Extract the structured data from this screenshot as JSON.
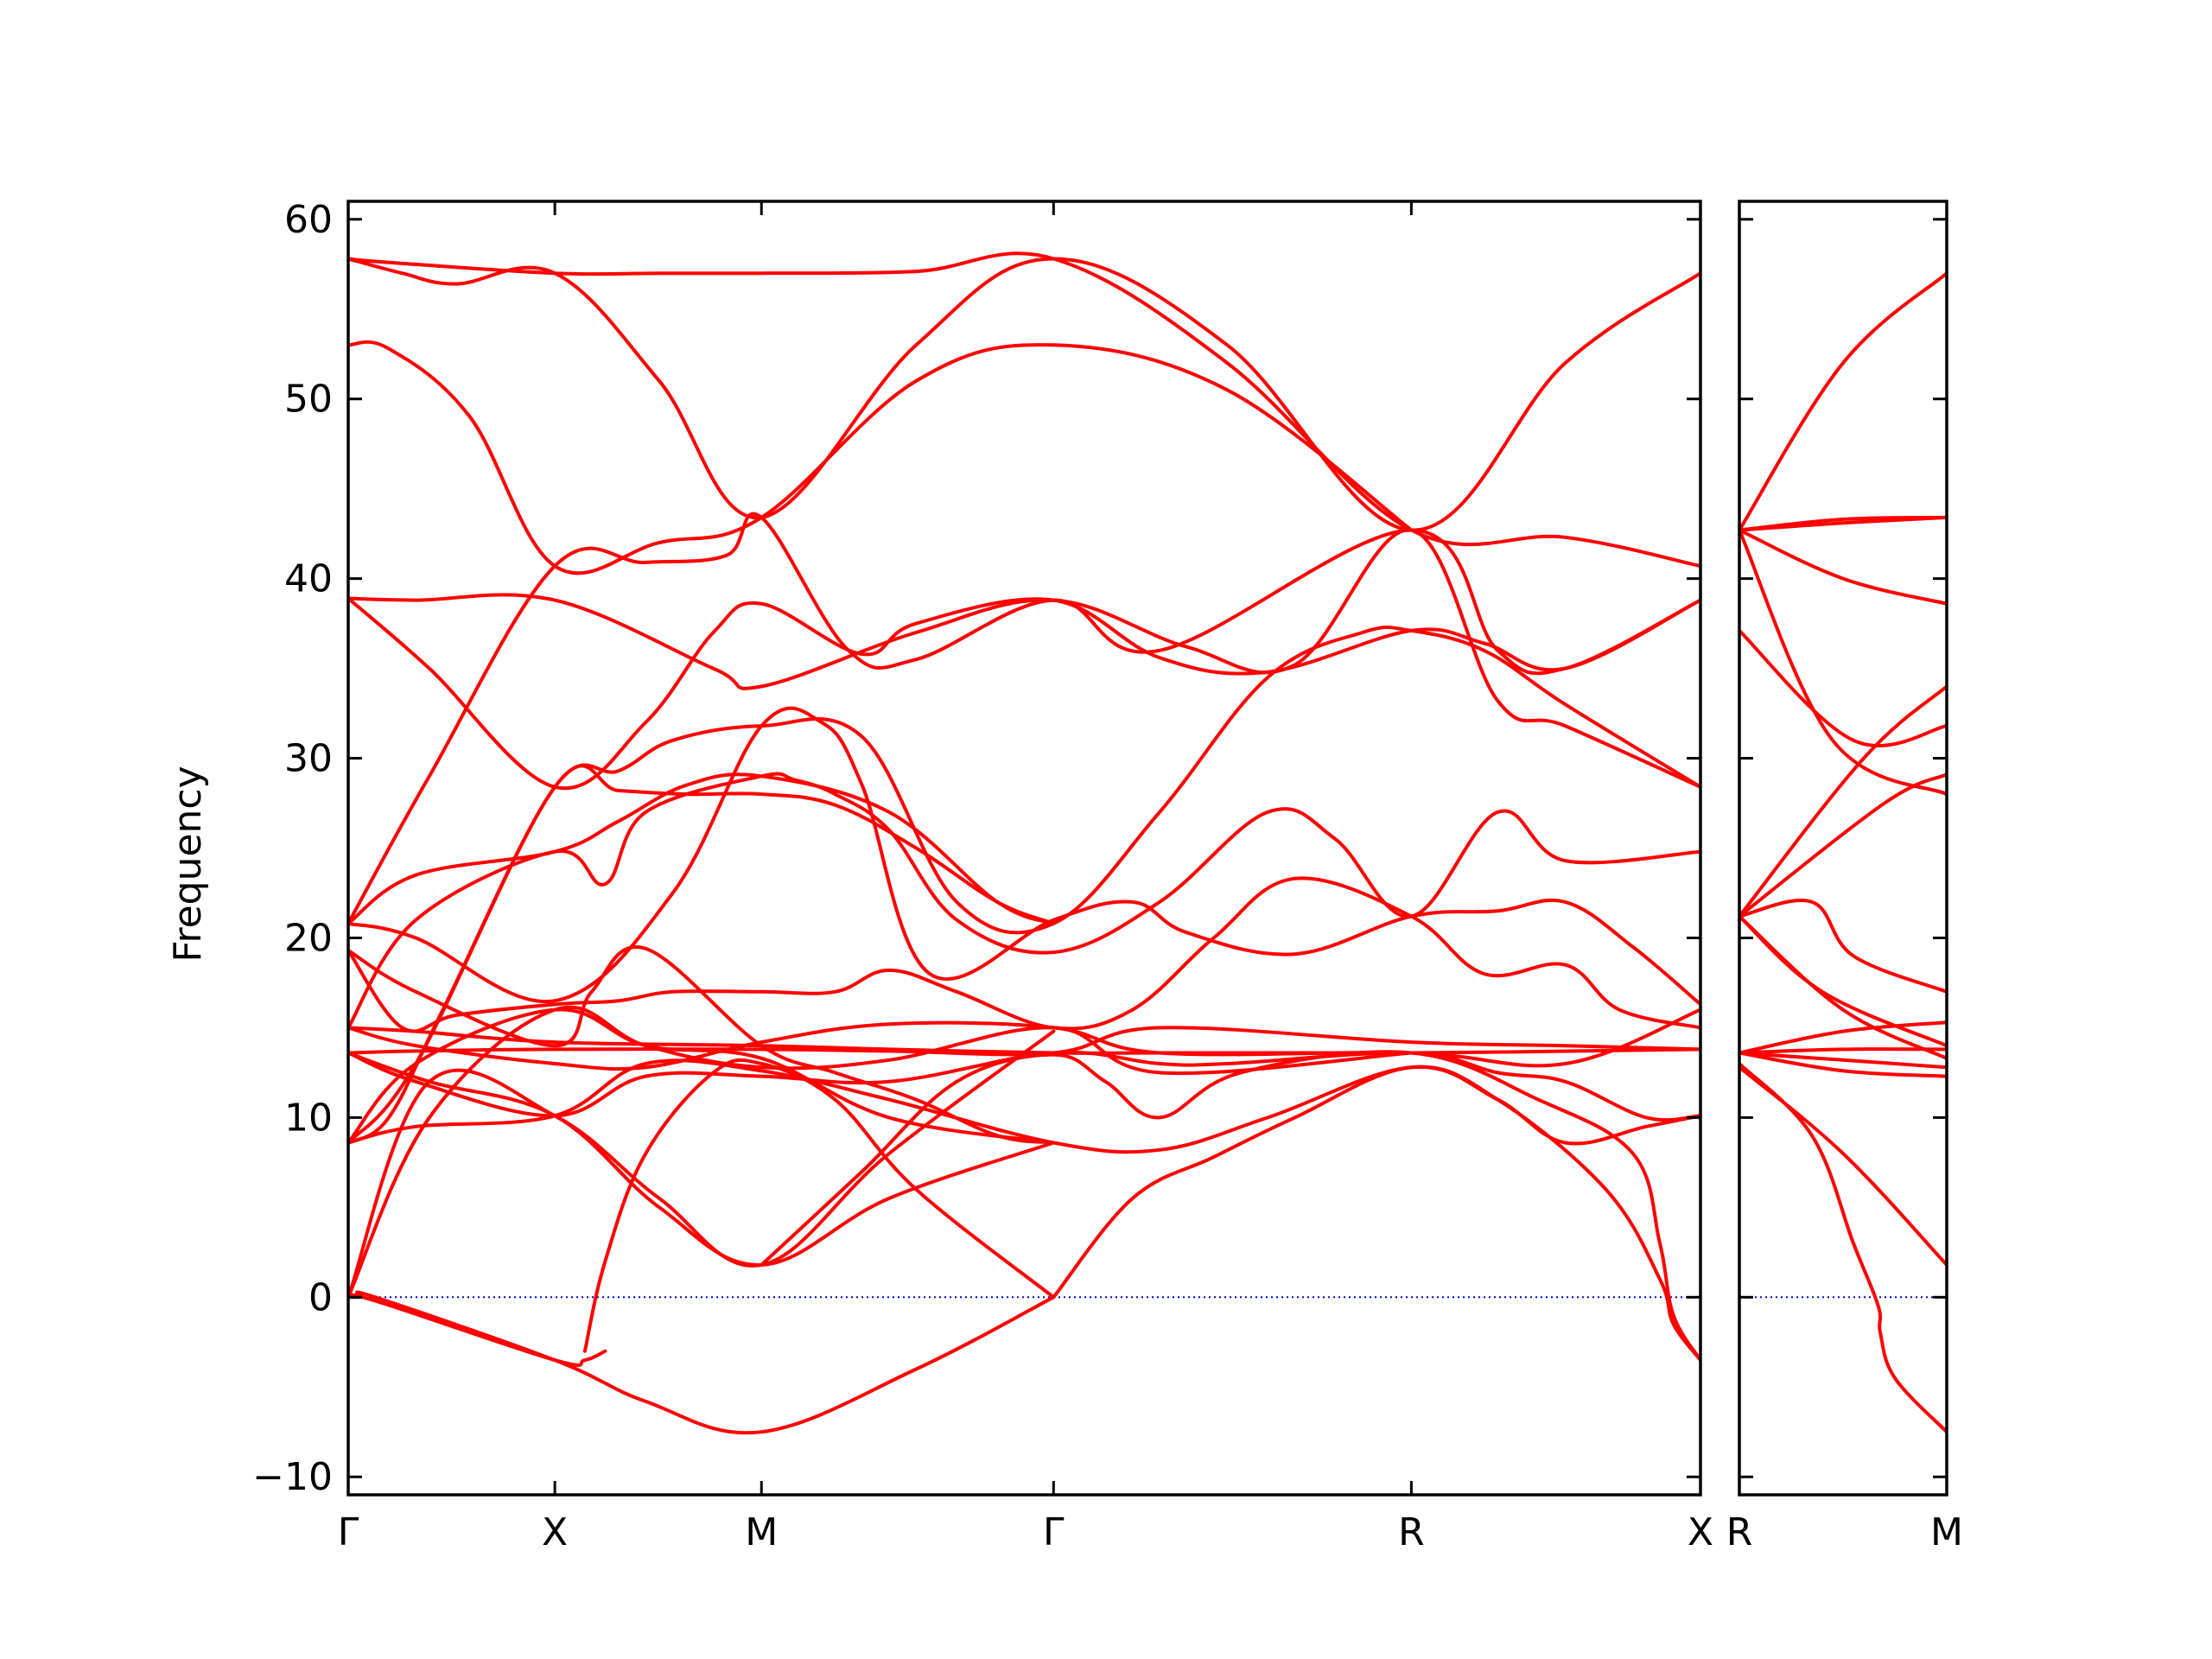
{
  "chart_data": {
    "type": "line",
    "title": "",
    "xlabel": "",
    "ylabel": "Frequency",
    "ylim": [
      -11,
      61
    ],
    "yticks": [
      -10,
      0,
      10,
      20,
      30,
      40,
      50,
      60
    ],
    "ytick_labels": [
      "−10",
      "0",
      "10",
      "20",
      "30",
      "40",
      "50",
      "60"
    ],
    "grid": false,
    "legend": "none",
    "colors": {
      "bands": "#ff0000",
      "zero_line": "#0000cc"
    },
    "panels": [
      {
        "name": "Γ-X-M-Γ-R-X",
        "xlim": [
          0,
          1
        ],
        "kpoints": [
          {
            "label": "Γ",
            "x": 0.0
          },
          {
            "label": "X",
            "x": 0.1528
          },
          {
            "label": "M",
            "x": 0.3056
          },
          {
            "label": "Γ",
            "x": 0.5216
          },
          {
            "label": "R",
            "x": 0.7862
          },
          {
            "label": "X",
            "x": 1.0
          }
        ],
        "bands": [
          {
            "x": [
              0,
              0.03,
              0.1528,
              0.23,
              0.3056,
              0.42,
              0.5216,
              0.65,
              0.7862,
              0.9,
              1.0
            ],
            "y": [
              57.8,
              57.6,
              57.0,
              57.0,
              57.0,
              57.1,
              57.8,
              52,
              42.7,
              42.3,
              40.7
            ]
          },
          {
            "x": [
              0,
              0.04,
              0.08,
              0.1528,
              0.23,
              0.3056,
              0.42,
              0.5216,
              0.65,
              0.7862,
              0.9,
              1.0
            ],
            "y": [
              57.8,
              57.0,
              56.4,
              57.0,
              51,
              43.4,
              53,
              57.8,
              53,
              42.7,
              52,
              57.0
            ]
          },
          {
            "x": [
              0,
              0.03,
              0.09,
              0.1528,
              0.23,
              0.3056,
              0.42,
              0.5216,
              0.65,
              0.7862
            ],
            "y": [
              53.0,
              52.8,
              49,
              40.7,
              42,
              43.4,
              51,
              53.0,
              50.5,
              42.7
            ]
          },
          {
            "x": [
              0,
              0.06,
              0.1528,
              0.22,
              0.28,
              0.3056,
              0.37,
              0.42,
              0.5216,
              0.6,
              0.7862,
              0.85,
              0.9,
              1.0
            ],
            "y": [
              20.8,
              29,
              40.7,
              40.9,
              41.3,
              43.4,
              36,
              35.5,
              38.8,
              36,
              42.7,
              36,
              35,
              38.8
            ]
          },
          {
            "x": [
              0,
              0.05,
              0.1528,
              0.27,
              0.3056,
              0.42,
              0.5216,
              0.62,
              0.7,
              0.7862,
              0.85,
              0.9,
              1.0
            ],
            "y": [
              38.9,
              38.8,
              38.8,
              35.0,
              34.0,
              37,
              38.8,
              36.2,
              35.2,
              42.7,
              33.2,
              31.8,
              28.4
            ]
          },
          {
            "x": [
              0,
              0.06,
              0.1528,
              0.22,
              0.27,
              0.3056,
              0.38,
              0.42,
              0.5216,
              0.6,
              0.68,
              0.7862,
              0.84,
              0.9,
              1.0
            ],
            "y": [
              38.9,
              35,
              28.4,
              32,
              37,
              38.6,
              35.8,
              37.5,
              38.8,
              35.6,
              34.8,
              37.1,
              36.4,
              35.0,
              38.8
            ]
          },
          {
            "x": [
              0,
              0.03,
              0.07,
              0.1528,
              0.2,
              0.24,
              0.3056,
              0.38,
              0.45,
              0.5216,
              0.6,
              0.68,
              0.75,
              0.7862,
              0.84,
              0.9,
              1.0
            ],
            "y": [
              8.6,
              10,
              16,
              28.4,
              29.3,
              31,
              31.8,
              31.2,
              22,
              20.8,
              27,
              34.5,
              37,
              37.1,
              36,
              33,
              28.4
            ]
          },
          {
            "x": [
              0,
              0.05,
              0.1528,
              0.2,
              0.25,
              0.3056,
              0.36,
              0.42,
              0.48,
              0.5216
            ],
            "y": [
              8.6,
              13,
              28.4,
              28.2,
              28.0,
              28.0,
              27.4,
              25,
              22,
              20.8
            ]
          },
          {
            "x": [
              0,
              0.05,
              0.1528,
              0.2,
              0.25,
              0.3056,
              0.4,
              0.48,
              0.5216
            ],
            "y": [
              20.8,
              23.5,
              24.8,
              26.5,
              28.5,
              29.0,
              27,
              22,
              20.8
            ]
          },
          {
            "x": [
              0,
              0.05,
              0.1528,
              0.19,
              0.22,
              0.3056,
              0.33,
              0.36,
              0.4,
              0.45,
              0.5216,
              0.6,
              0.68,
              0.73,
              0.7862,
              0.85,
              0.9,
              1.0
            ],
            "y": [
              15,
              21,
              24.8,
              23.0,
              27,
              29.0,
              28.8,
              28,
              26,
              21,
              19.2,
              22,
              27.0,
              25.5,
              21.2,
              27.0,
              24.3,
              24.8
            ]
          },
          {
            "x": [
              0,
              0.05,
              0.1528,
              0.24,
              0.3056,
              0.35,
              0.38,
              0.43,
              0.5216,
              0.58,
              0.62,
              0.7,
              0.7862,
              0.85,
              0.9,
              0.95,
              1.0
            ],
            "y": [
              20.8,
              20,
              16.5,
              22.5,
              31.8,
              32,
              28.5,
              18,
              21.0,
              22,
              20.3,
              19.1,
              21.2,
              21.5,
              22.0,
              19.5,
              16.3
            ]
          },
          {
            "x": [
              0,
              0.04,
              0.08,
              0.1528,
              0.2,
              0.24,
              0.3056,
              0.36,
              0.4,
              0.45,
              0.5216,
              0.58,
              0.64,
              0.7,
              0.7862,
              0.84,
              0.9,
              0.94,
              1.0
            ],
            "y": [
              19.3,
              15,
              15.7,
              16.3,
              16.5,
              17,
              17.0,
              17,
              18.2,
              17,
              15.0,
              16,
              20,
              23.3,
              21.2,
              18,
              18.5,
              16,
              15.0
            ]
          },
          {
            "x": [
              0,
              0.05,
              0.1528,
              0.18,
              0.22,
              0.3056,
              0.36,
              0.42,
              0.48,
              0.5216
            ],
            "y": [
              19.3,
              17,
              14,
              17,
              19.4,
              14,
              12.5,
              11,
              9,
              8.6
            ]
          },
          {
            "x": [
              0,
              0.05,
              0.1528,
              0.3056,
              0.4,
              0.5216,
              0.6,
              0.7862,
              1.0
            ],
            "y": [
              15.0,
              14.8,
              14.2,
              14.0,
              13.8,
              13.6,
              13.6,
              13.6,
              13.8
            ]
          },
          {
            "x": [
              0,
              0.05,
              0.1528,
              0.3056,
              0.4,
              0.5216,
              0.6,
              0.7862,
              0.9,
              1.0
            ],
            "y": [
              13.6,
              13.7,
              13.8,
              13.8,
              13.7,
              13.6,
              15,
              14.2,
              14.0,
              13.8
            ]
          },
          {
            "x": [
              0,
              0.05,
              0.1528,
              0.22,
              0.3056,
              0.4,
              0.5216,
              0.6,
              0.7862,
              0.9,
              1.0
            ],
            "y": [
              15.0,
              14.0,
              13,
              12.8,
              14.2,
              15.2,
              15.0,
              13.6,
              13.6,
              13.0,
              16.0
            ]
          },
          {
            "x": [
              0,
              0.05,
              0.1528,
              0.22,
              0.3056,
              0.4,
              0.5216,
              0.6,
              0.65,
              0.7862,
              0.85,
              0.9,
              0.96,
              1.0
            ],
            "y": [
              13.6,
              12,
              10.1,
              12.3,
              12.3,
              12.0,
              13.6,
              13.0,
              13,
              13.6,
              12.5,
              12.0,
              10,
              10.1
            ]
          },
          {
            "x": [
              0,
              0.05,
              0.1528,
              0.22,
              0.3056,
              0.4,
              0.5216,
              0.6,
              0.68,
              0.7862,
              0.85,
              0.9,
              0.96,
              1.0
            ],
            "y": [
              8.6,
              9.5,
              10.1,
              13,
              12.6,
              11,
              8.6,
              8.2,
              10,
              12.8,
              11,
              8.6,
              9.5,
              10.1
            ]
          },
          {
            "x": [
              0,
              0.06,
              0.1528,
              0.22,
              0.3056,
              0.4,
              0.5216,
              0.6,
              0.7862
            ],
            "y": [
              0,
              10,
              16,
              14,
              12.8,
              13.2,
              15.0,
              12.5,
              13.6
            ]
          },
          {
            "x": [
              0,
              0.05,
              0.1528,
              0.22,
              0.3056,
              0.4,
              0.5216
            ],
            "y": [
              8.6,
              13,
              16,
              14,
              13.3,
              10,
              8.6
            ]
          },
          {
            "x": [
              0,
              0.06,
              0.1528,
              0.23,
              0.3056,
              0.4,
              0.5216
            ],
            "y": [
              13.6,
              12,
              10.1,
              5,
              1.8,
              5.5,
              8.6
            ]
          },
          {
            "x": [
              0,
              0.06,
              0.1528,
              0.23,
              0.3056,
              0.4,
              0.5216
            ],
            "y": [
              0,
              12,
              10.1,
              5.5,
              1.8,
              8,
              14.8
            ]
          },
          {
            "x": [
              0.175,
              0.19,
              0.22,
              0.27,
              0.3056,
              0.36,
              0.42,
              0.5216
            ],
            "y": [
              -3,
              2,
              8,
              12.5,
              13,
              11,
              6,
              0
            ]
          },
          {
            "x": [
              0.3056,
              0.38,
              0.45,
              0.5216,
              0.56,
              0.6,
              0.66,
              0.7862,
              0.88,
              0.95,
              0.97,
              0.98,
              1.0
            ],
            "y": [
              1.8,
              7,
              12,
              13.5,
              12,
              10,
              12.5,
              13.6,
              11,
              8,
              3,
              -1,
              -3.5
            ]
          },
          {
            "x": [
              0.5216,
              0.58,
              0.64,
              0.7,
              0.7862,
              0.85,
              0.93,
              0.97,
              0.98,
              1.0
            ],
            "y": [
              0,
              5.5,
              7.8,
              10,
              12.8,
              11,
              6,
              1,
              -1.5,
              -3.5
            ]
          },
          {
            "x": [
              0,
              0.02,
              0.1528,
              0.175,
              0.19
            ],
            "y": [
              0,
              -0.2,
              -3.5,
              -3.5,
              -3.0
            ]
          },
          {
            "x": [
              0,
              0.01,
              0.02,
              0.1528,
              0.22,
              0.3056,
              0.42,
              0.5216
            ],
            "y": [
              0,
              0,
              0,
              -3.5,
              -5.8,
              -7.5,
              -4,
              0
            ]
          }
        ]
      },
      {
        "name": "R-M",
        "xlim": [
          0,
          1
        ],
        "kpoints": [
          {
            "label": "R",
            "x": 0.0
          },
          {
            "label": "M",
            "x": 1.0
          }
        ],
        "bands": [
          {
            "x": [
              0,
              0.5,
              1.0
            ],
            "y": [
              42.7,
              52,
              57.0
            ]
          },
          {
            "x": [
              0,
              0.5,
              1.0
            ],
            "y": [
              42.7,
              43.3,
              43.4
            ]
          },
          {
            "x": [
              0,
              0.5,
              1.0
            ],
            "y": [
              42.7,
              43.1,
              43.4
            ]
          },
          {
            "x": [
              0,
              0.5,
              1.0
            ],
            "y": [
              42.7,
              40,
              38.6
            ]
          },
          {
            "x": [
              0,
              0.45,
              1.0
            ],
            "y": [
              42.7,
              31,
              28.0
            ]
          },
          {
            "x": [
              0,
              0.55,
              1.0
            ],
            "y": [
              37.1,
              31,
              31.8
            ]
          },
          {
            "x": [
              0,
              0.6,
              1.0
            ],
            "y": [
              21.2,
              30,
              34.0
            ]
          },
          {
            "x": [
              0,
              0.7,
              1.0
            ],
            "y": [
              21.2,
              27.5,
              29.1
            ]
          },
          {
            "x": [
              0,
              0.35,
              0.55,
              1.0
            ],
            "y": [
              21.2,
              22.0,
              19.0,
              17.0
            ]
          },
          {
            "x": [
              0,
              0.4,
              1.0
            ],
            "y": [
              21.2,
              17,
              14.0
            ]
          },
          {
            "x": [
              0,
              0.5,
              1.0
            ],
            "y": [
              21.2,
              16,
              13.3
            ]
          },
          {
            "x": [
              0,
              0.5,
              1.0
            ],
            "y": [
              13.6,
              14.8,
              15.3
            ]
          },
          {
            "x": [
              0,
              0.5,
              1.0
            ],
            "y": [
              13.6,
              13.8,
              13.8
            ]
          },
          {
            "x": [
              0,
              0.5,
              1.0
            ],
            "y": [
              13.6,
              13.2,
              12.8
            ]
          },
          {
            "x": [
              0,
              0.5,
              1.0
            ],
            "y": [
              13.6,
              12.6,
              12.3
            ]
          },
          {
            "x": [
              0,
              0.5,
              1.0
            ],
            "y": [
              12.8,
              8,
              1.8
            ]
          },
          {
            "x": [
              0,
              0.35,
              0.55,
              0.67,
              0.68,
              0.75,
              1.0
            ],
            "y": [
              13.0,
              9,
              3,
              -0.5,
              -2,
              -4.5,
              -7.5
            ]
          }
        ]
      }
    ]
  }
}
